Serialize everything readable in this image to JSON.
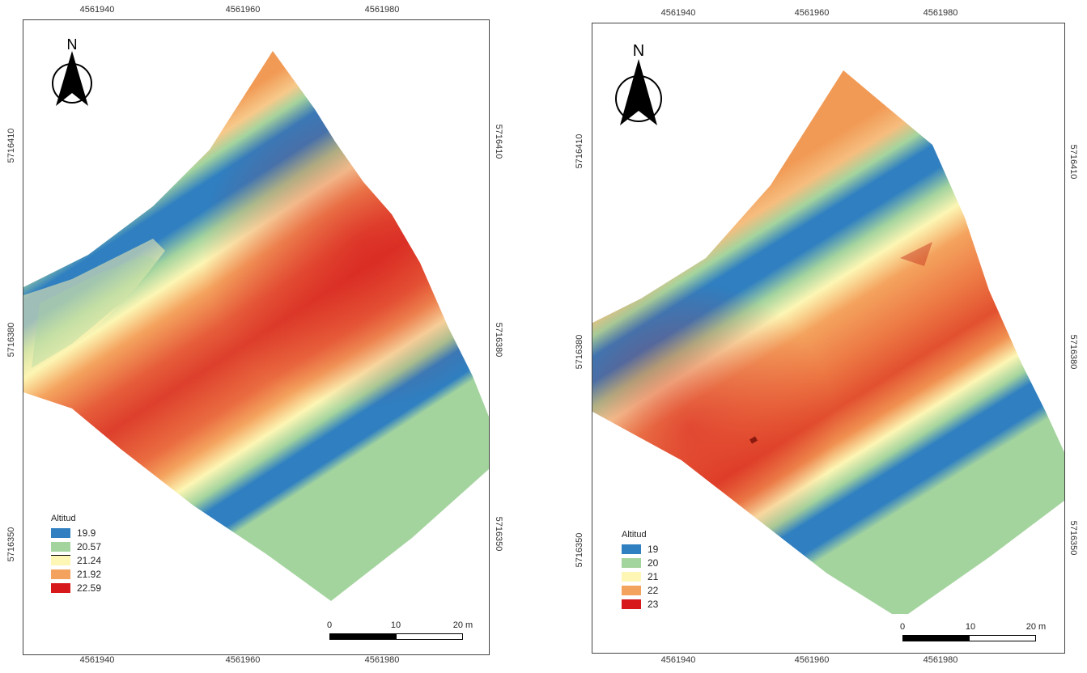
{
  "left_map": {
    "x_ticks_top": [
      "4561940",
      "4561960",
      "4561980"
    ],
    "x_ticks_bottom": [
      "4561940",
      "4561960",
      "4561980"
    ],
    "y_ticks_left": [
      "5716410",
      "5716380",
      "5716350"
    ],
    "y_ticks_right": [
      "5716410",
      "5716380",
      "5716350"
    ],
    "north_label": "N",
    "legend": {
      "title": "Altitud",
      "items": [
        {
          "label": "19.9",
          "color": "#2f7fc1"
        },
        {
          "label": "20.57",
          "color": "#a4d49e"
        },
        {
          "label": "21.24",
          "color": "#fdf6b4"
        },
        {
          "label": "21.92",
          "color": "#f4a35e"
        },
        {
          "label": "22.59",
          "color": "#d7191c"
        }
      ]
    },
    "scale": {
      "labels": [
        "0",
        "10",
        "20 m"
      ]
    }
  },
  "right_map": {
    "x_ticks_top": [
      "4561940",
      "4561960",
      "4561980"
    ],
    "x_ticks_bottom": [
      "4561940",
      "4561960",
      "4561980"
    ],
    "y_ticks_left": [
      "5716410",
      "5716380",
      "5716350"
    ],
    "y_ticks_right": [
      "5716410",
      "5716380",
      "5716350"
    ],
    "north_label": "N",
    "legend": {
      "title": "Altitud",
      "items": [
        {
          "label": "19",
          "color": "#2f7fc1"
        },
        {
          "label": "20",
          "color": "#a4d49e"
        },
        {
          "label": "21",
          "color": "#fdf6b4"
        },
        {
          "label": "22",
          "color": "#f4a35e"
        },
        {
          "label": "23",
          "color": "#d7191c"
        }
      ]
    },
    "scale": {
      "labels": [
        "0",
        "10",
        "20 m"
      ]
    }
  }
}
